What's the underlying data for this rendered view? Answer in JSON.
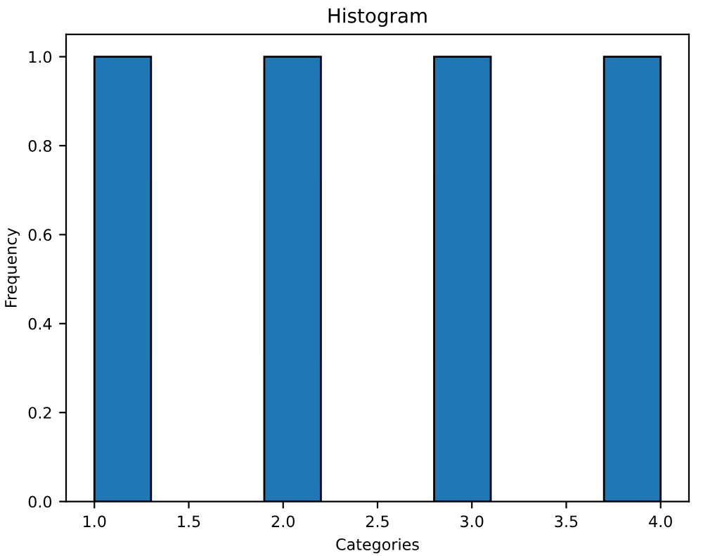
{
  "chart_data": {
    "type": "histogram",
    "title": "Histogram",
    "xlabel": "Categories",
    "ylabel": "Frequency",
    "bins": [
      1.0,
      1.3,
      1.6,
      1.9,
      2.2,
      2.5,
      2.8,
      3.1,
      3.4,
      3.7,
      4.0
    ],
    "values": [
      1,
      0,
      0,
      1,
      0,
      0,
      1,
      0,
      0,
      1
    ],
    "color": "#1f77b4",
    "xlim": [
      0.85,
      4.15
    ],
    "xticks": [
      {
        "value": 1.0,
        "label": "1.0"
      },
      1.5,
      {
        "value": 2.0,
        "label": "2.0"
      },
      2.5,
      {
        "value": 3.0,
        "label": "3.0"
      },
      3.5,
      {
        "value": 4.0,
        "label": "4.0"
      }
    ],
    "ylim": [
      0,
      1.05
    ],
    "yticks": [
      {
        "value": 0,
        "label": "0.0"
      },
      0.2,
      0.4,
      0.6,
      0.8,
      {
        "value": 1,
        "label": "1.0"
      }
    ],
    "grid": false,
    "legend": false
  }
}
